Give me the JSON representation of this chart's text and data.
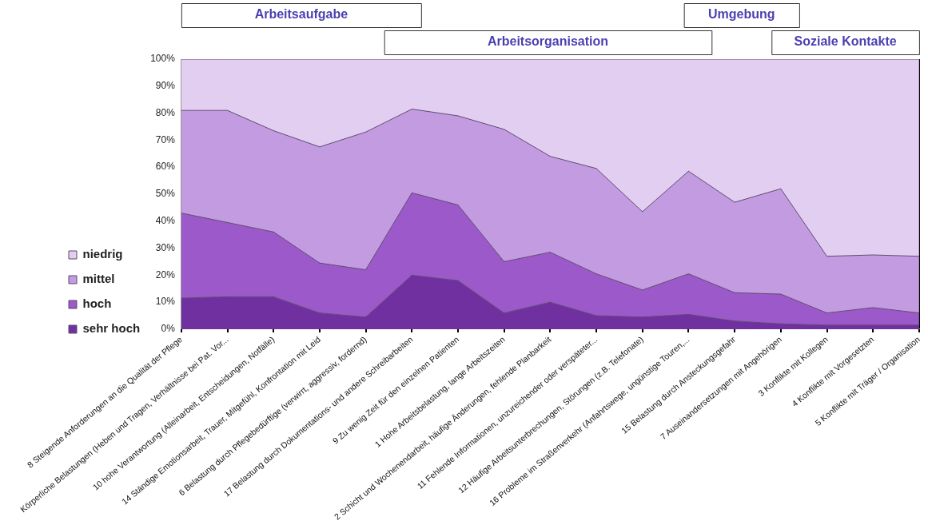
{
  "chart_data": {
    "type": "area",
    "stacked": true,
    "categories": [
      "8 Steigende Anforderungen an die Qualität der Pflege",
      "Körperliche Belastungen (Heben und Tragen, Verhältnisse bei Pat. Vor...",
      "10 hohe Verantwortung (Alleinarbeit, Entscheidungen, Notfälle)",
      "14 Ständige Emotionsarbeit, Trauer, Mitgefühl, Konfrontation mit Leid",
      "6 Belastung durch Pflegebedürftige (verwirrt, aggressiv, fordernd)",
      "17 Belastung durch Dokumentations- und andere Schreibarbeiten",
      "9 Zu wenig Zeit für den einzelnen Patienten",
      "1 Hohe Arbeitsbelastung, lange Arbeitszeiten",
      "2 Schicht und Wochenendarbeit, häufige Änderungen, fehlende Planbarkeit",
      "11 Fehlende Informationen, unzureichender oder verspäteter...",
      "12 Häufige Arbeitsunterbrechungen, Störungen (z.B. Telefonate)",
      "16 Probleme im Straßenverkehr (Anfahrtswege, ungünstige Touren,...",
      "15 Belastung durch Ansteckungsgefahr",
      "7 Auseinandersetzungen mit Angehörigen",
      "3 Konflikte mit Kollegen",
      "4 Konflikte mit Vorgesetzten",
      "5 Konflikte mit Träger / Organisation"
    ],
    "series": [
      {
        "name": "sehr hoch",
        "color": "#7030a0",
        "values": [
          11.5,
          12,
          12,
          6,
          4.5,
          20,
          18,
          6,
          10,
          5,
          4.5,
          5.5,
          3,
          2,
          1.5,
          1.5,
          1.5
        ]
      },
      {
        "name": "hoch",
        "color": "#9b59c9",
        "values": [
          31.5,
          27.5,
          24,
          18.5,
          17.5,
          30.5,
          28,
          19,
          18.5,
          15.5,
          10,
          15,
          10.5,
          11,
          4.5,
          6.5,
          4.5
        ]
      },
      {
        "name": "mittel",
        "color": "#c39be0",
        "values": [
          38,
          41.5,
          37.5,
          43,
          51,
          31,
          33,
          49,
          35.5,
          39,
          29,
          38,
          33.5,
          39,
          21,
          19.5,
          21
        ]
      },
      {
        "name": "niedrig",
        "color": "#e2cef0",
        "values": [
          19,
          19,
          26.5,
          32.5,
          27,
          18.5,
          21,
          26,
          36,
          40.5,
          56.5,
          41.5,
          53,
          48,
          73,
          72.5,
          73
        ]
      }
    ],
    "ylim": [
      0,
      100
    ],
    "yticks": [
      {
        "value": 0,
        "label": "0%"
      },
      {
        "value": 10,
        "label": "10%"
      },
      {
        "value": 20,
        "label": "20%"
      },
      {
        "value": 30,
        "label": "30%"
      },
      {
        "value": 40,
        "label": "40%"
      },
      {
        "value": 50,
        "label": "50%"
      },
      {
        "value": 60,
        "label": "60%"
      },
      {
        "value": 70,
        "label": "70%"
      },
      {
        "value": 80,
        "label": "80%"
      },
      {
        "value": 90,
        "label": "90%"
      },
      {
        "value": 100,
        "label": "100%"
      }
    ],
    "grid": "x",
    "legend": "left",
    "annotations": [
      "Arbeitsaufgabe",
      "Arbeitsorganisation",
      "Umgebung",
      "Soziale Kontakte"
    ]
  }
}
